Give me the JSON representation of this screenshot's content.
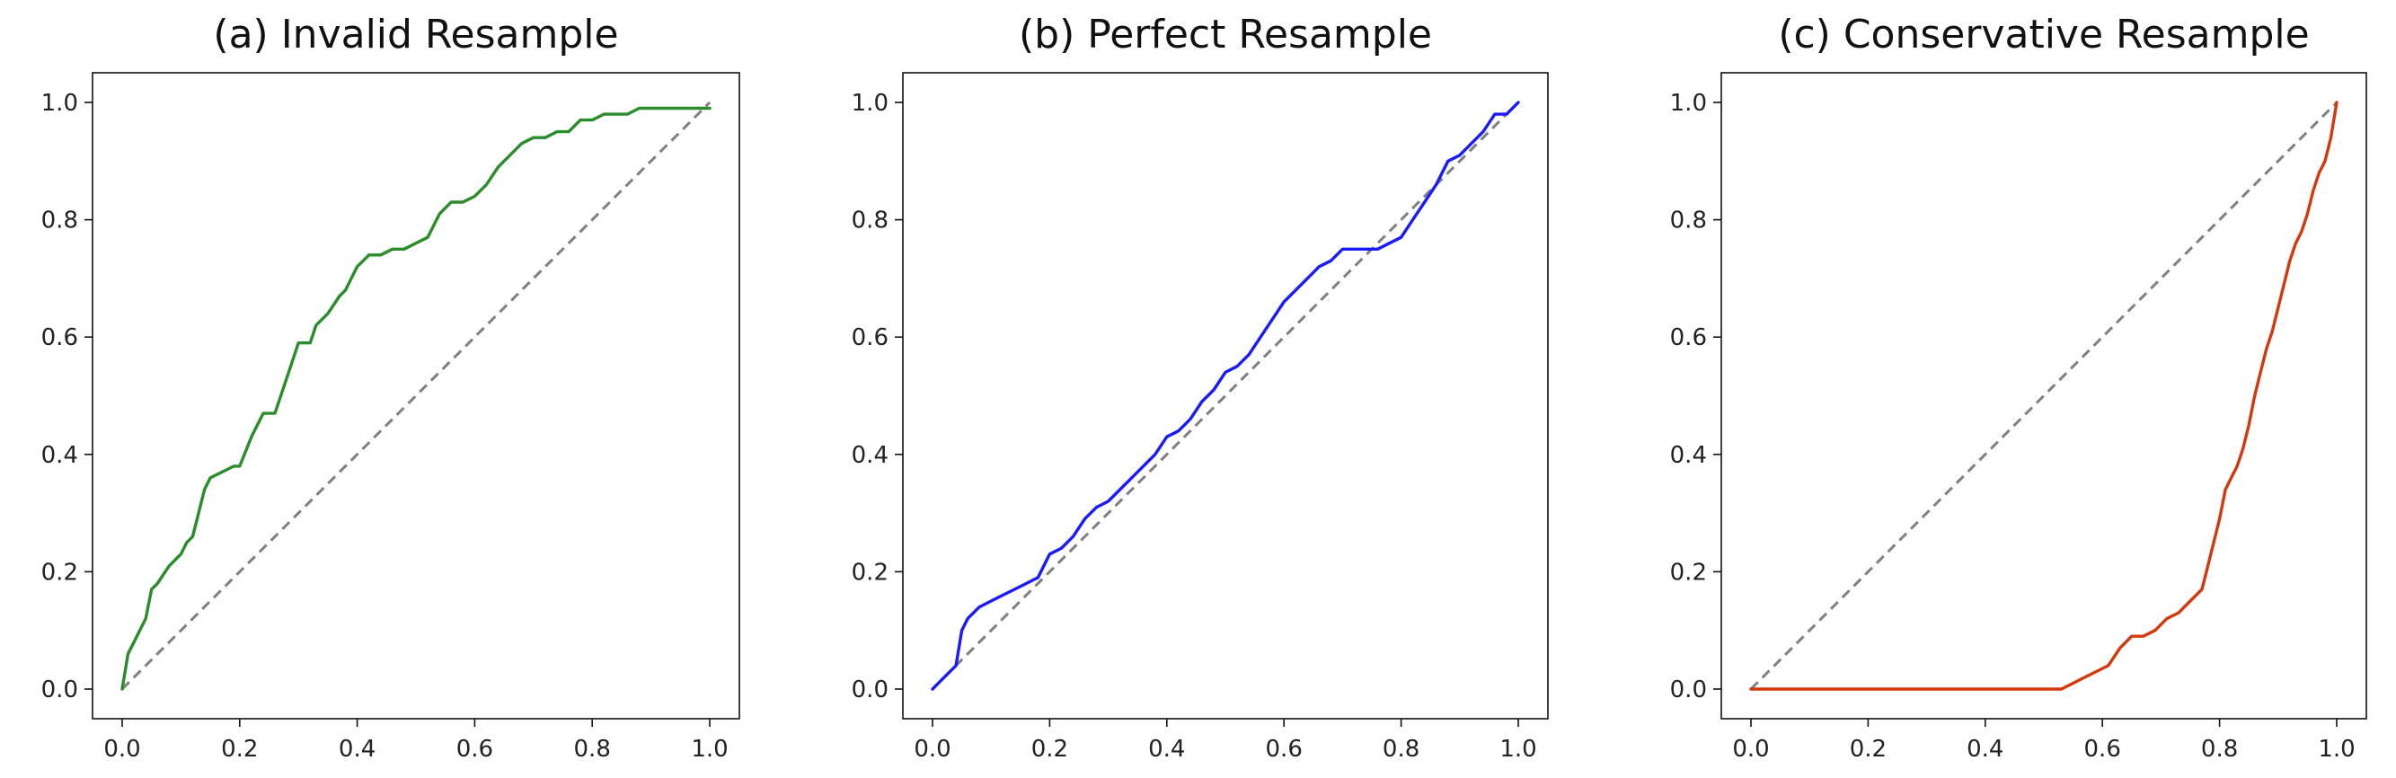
{
  "chart_data": [
    {
      "type": "line",
      "title": "(a) Invalid Resample",
      "xlabel": "",
      "ylabel": "",
      "xlim": [
        0,
        1
      ],
      "ylim": [
        0,
        1
      ],
      "xticks": [
        "0.0",
        "0.2",
        "0.4",
        "0.6",
        "0.8",
        "1.0"
      ],
      "yticks": [
        "0.0",
        "0.2",
        "0.4",
        "0.6",
        "0.8",
        "1.0"
      ],
      "grid": false,
      "reference_line": {
        "style": "dashed",
        "color": "#808080",
        "points": [
          [
            0,
            0
          ],
          [
            1,
            1
          ]
        ]
      },
      "series": [
        {
          "color": "#2a8c2a",
          "x": [
            0,
            0.01,
            0.02,
            0.03,
            0.04,
            0.05,
            0.06,
            0.08,
            0.1,
            0.11,
            0.12,
            0.14,
            0.15,
            0.17,
            0.19,
            0.2,
            0.22,
            0.24,
            0.26,
            0.27,
            0.29,
            0.3,
            0.32,
            0.33,
            0.35,
            0.37,
            0.38,
            0.4,
            0.42,
            0.44,
            0.46,
            0.48,
            0.5,
            0.52,
            0.54,
            0.56,
            0.58,
            0.6,
            0.62,
            0.64,
            0.66,
            0.68,
            0.7,
            0.72,
            0.74,
            0.76,
            0.78,
            0.8,
            0.82,
            0.84,
            0.86,
            0.88,
            0.9,
            0.92,
            0.95,
            1.0
          ],
          "y": [
            0,
            0.06,
            0.08,
            0.1,
            0.12,
            0.17,
            0.18,
            0.21,
            0.23,
            0.25,
            0.26,
            0.34,
            0.36,
            0.37,
            0.38,
            0.38,
            0.43,
            0.47,
            0.47,
            0.5,
            0.56,
            0.59,
            0.59,
            0.62,
            0.64,
            0.67,
            0.68,
            0.72,
            0.74,
            0.74,
            0.75,
            0.75,
            0.76,
            0.77,
            0.81,
            0.83,
            0.83,
            0.84,
            0.86,
            0.89,
            0.91,
            0.93,
            0.94,
            0.94,
            0.95,
            0.95,
            0.97,
            0.97,
            0.98,
            0.98,
            0.98,
            0.99,
            0.99,
            0.99,
            0.99,
            0.99
          ]
        }
      ]
    },
    {
      "type": "line",
      "title": "(b) Perfect Resample",
      "xlabel": "",
      "ylabel": "",
      "xlim": [
        0,
        1
      ],
      "ylim": [
        0,
        1
      ],
      "xticks": [
        "0.0",
        "0.2",
        "0.4",
        "0.6",
        "0.8",
        "1.0"
      ],
      "yticks": [
        "0.0",
        "0.2",
        "0.4",
        "0.6",
        "0.8",
        "1.0"
      ],
      "grid": false,
      "reference_line": {
        "style": "dashed",
        "color": "#808080",
        "points": [
          [
            0,
            0
          ],
          [
            1,
            1
          ]
        ]
      },
      "series": [
        {
          "color": "#1a1aff",
          "x": [
            0,
            0.02,
            0.04,
            0.05,
            0.06,
            0.08,
            0.1,
            0.12,
            0.14,
            0.16,
            0.18,
            0.2,
            0.22,
            0.24,
            0.26,
            0.28,
            0.3,
            0.32,
            0.34,
            0.36,
            0.38,
            0.4,
            0.42,
            0.44,
            0.46,
            0.48,
            0.5,
            0.52,
            0.54,
            0.56,
            0.58,
            0.6,
            0.62,
            0.64,
            0.66,
            0.68,
            0.7,
            0.72,
            0.74,
            0.76,
            0.78,
            0.8,
            0.82,
            0.84,
            0.86,
            0.88,
            0.9,
            0.92,
            0.94,
            0.96,
            0.98,
            1.0
          ],
          "y": [
            0,
            0.02,
            0.04,
            0.1,
            0.12,
            0.14,
            0.15,
            0.16,
            0.17,
            0.18,
            0.19,
            0.23,
            0.24,
            0.26,
            0.29,
            0.31,
            0.32,
            0.34,
            0.36,
            0.38,
            0.4,
            0.43,
            0.44,
            0.46,
            0.49,
            0.51,
            0.54,
            0.55,
            0.57,
            0.6,
            0.63,
            0.66,
            0.68,
            0.7,
            0.72,
            0.73,
            0.75,
            0.75,
            0.75,
            0.75,
            0.76,
            0.77,
            0.8,
            0.83,
            0.86,
            0.9,
            0.91,
            0.93,
            0.95,
            0.98,
            0.98,
            1.0
          ]
        }
      ]
    },
    {
      "type": "line",
      "title": "(c) Conservative Resample",
      "xlabel": "",
      "ylabel": "",
      "xlim": [
        0,
        1
      ],
      "ylim": [
        0,
        1
      ],
      "xticks": [
        "0.0",
        "0.2",
        "0.4",
        "0.6",
        "0.8",
        "1.0"
      ],
      "yticks": [
        "0.0",
        "0.2",
        "0.4",
        "0.6",
        "0.8",
        "1.0"
      ],
      "grid": false,
      "reference_line": {
        "style": "dashed",
        "color": "#808080",
        "points": [
          [
            0,
            0
          ],
          [
            1,
            1
          ]
        ]
      },
      "series": [
        {
          "color": "#d4380d",
          "x": [
            0,
            0.2,
            0.4,
            0.5,
            0.53,
            0.55,
            0.57,
            0.59,
            0.61,
            0.63,
            0.65,
            0.67,
            0.69,
            0.71,
            0.73,
            0.75,
            0.77,
            0.78,
            0.79,
            0.8,
            0.81,
            0.82,
            0.83,
            0.84,
            0.85,
            0.86,
            0.87,
            0.88,
            0.89,
            0.9,
            0.91,
            0.92,
            0.93,
            0.94,
            0.95,
            0.96,
            0.97,
            0.98,
            0.99,
            1.0
          ],
          "y": [
            0,
            0,
            0,
            0,
            0,
            0.01,
            0.02,
            0.03,
            0.04,
            0.07,
            0.09,
            0.09,
            0.1,
            0.12,
            0.13,
            0.15,
            0.17,
            0.21,
            0.25,
            0.29,
            0.34,
            0.36,
            0.38,
            0.41,
            0.45,
            0.5,
            0.54,
            0.58,
            0.61,
            0.65,
            0.69,
            0.73,
            0.76,
            0.78,
            0.81,
            0.85,
            0.88,
            0.9,
            0.94,
            1.0
          ]
        }
      ]
    }
  ]
}
